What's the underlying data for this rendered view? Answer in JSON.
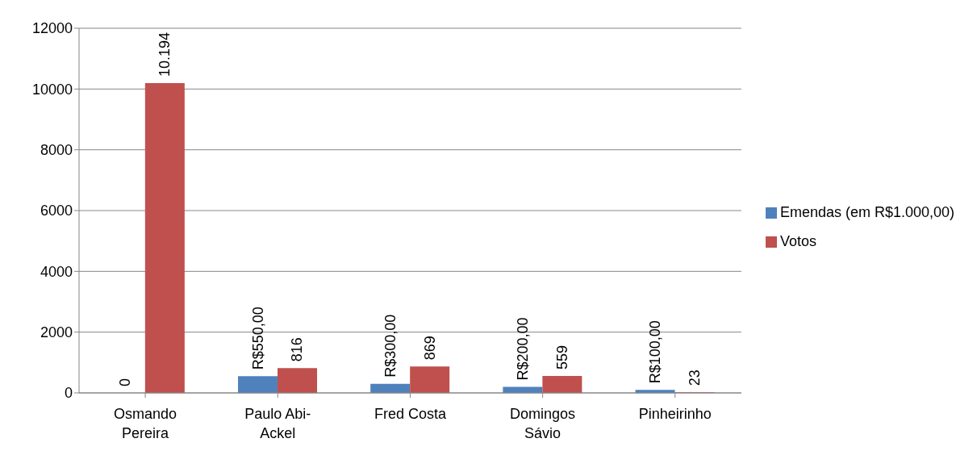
{
  "chart_data": {
    "type": "bar",
    "categories": [
      "Osmando Pereira",
      "Paulo Abi-Ackel",
      "Fred Costa",
      "Domingos Sávio",
      "Pinheirinho"
    ],
    "series": [
      {
        "name": "Emendas (em R$1.000,00)",
        "color": "#4f81bd",
        "values": [
          0,
          550,
          300,
          200,
          100
        ],
        "value_labels": [
          "0",
          "R$550,00",
          "R$300,00",
          "R$200,00",
          "R$100,00"
        ]
      },
      {
        "name": "Votos",
        "color": "#c0504d",
        "values": [
          10194,
          816,
          869,
          559,
          23
        ],
        "value_labels": [
          "10.194",
          "816",
          "869",
          "559",
          "23"
        ]
      }
    ],
    "ylim": [
      0,
      12000
    ],
    "yticks": [
      0,
      2000,
      4000,
      6000,
      8000,
      10000,
      12000
    ],
    "grid": "y",
    "legend": "right"
  }
}
